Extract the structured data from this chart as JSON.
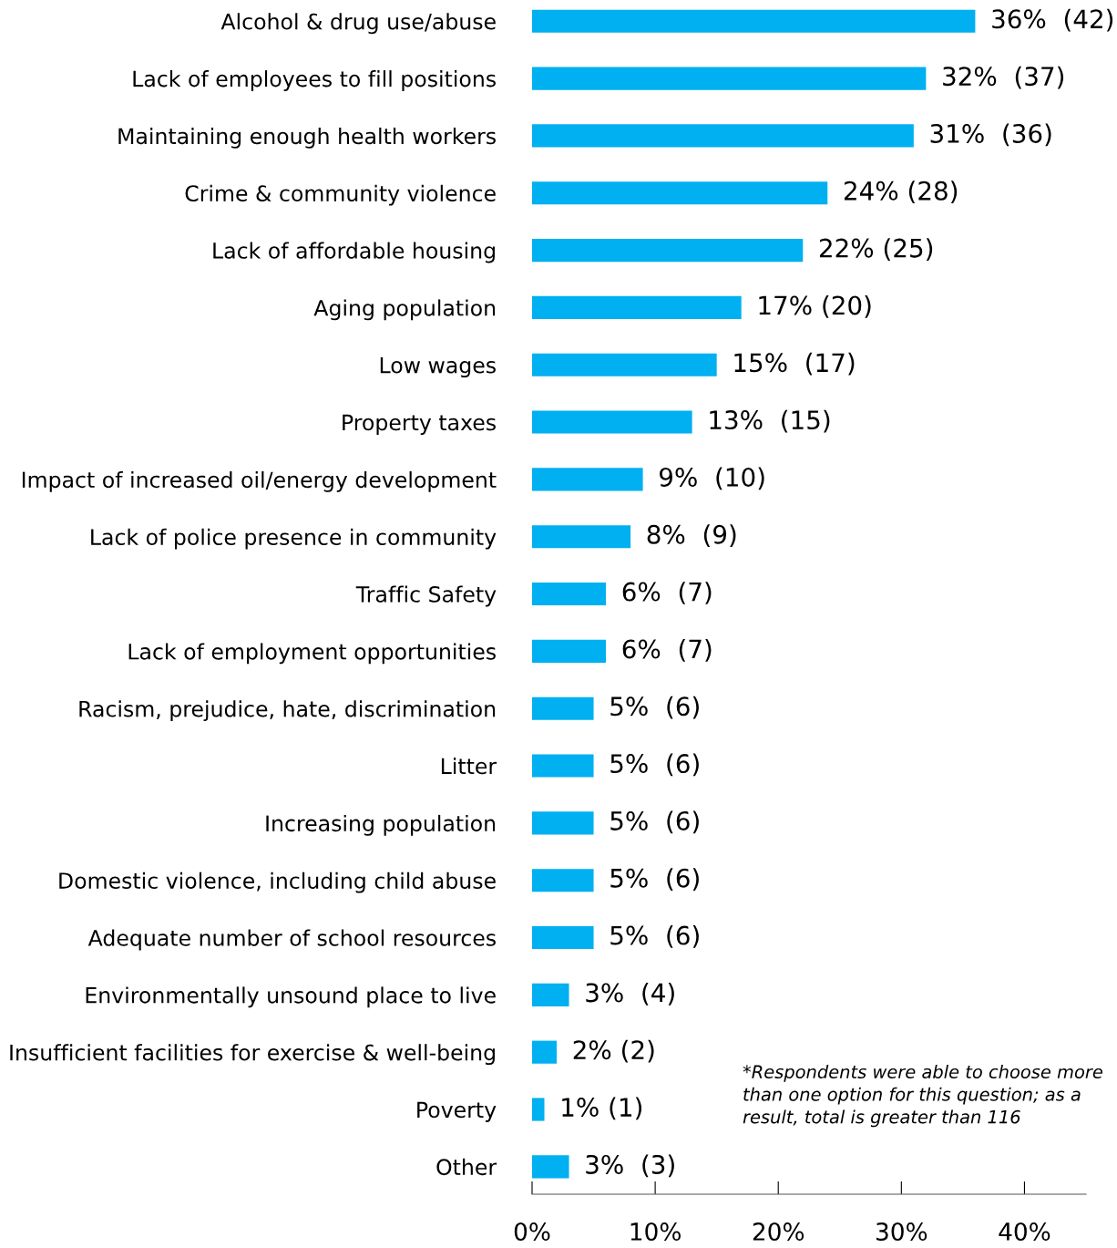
{
  "chart_data": {
    "type": "bar",
    "orientation": "horizontal",
    "categories": [
      "Alcohol & drug use/abuse",
      "Lack of employees to fill positions",
      "Maintaining enough health workers",
      "Crime & community violence",
      "Lack of affordable housing",
      "Aging population",
      "Low wages",
      "Property taxes",
      "Impact of increased oil/energy development",
      "Lack of police presence in community",
      "Traffic Safety",
      "Lack of employment opportunities",
      "Racism, prejudice, hate, discrimination",
      "Litter",
      "Increasing population",
      "Domestic violence, including child abuse",
      "Adequate number of school resources",
      "Environmentally unsound place to live",
      "Insufficient facilities for exercise & well-being",
      "Poverty",
      "Other"
    ],
    "values": [
      36,
      32,
      31,
      24,
      22,
      17,
      15,
      13,
      9,
      8,
      6,
      6,
      5,
      5,
      5,
      5,
      5,
      3,
      2,
      1,
      3
    ],
    "value_labels": [
      "36%  (42)",
      "32%  (37)",
      "31%  (36)",
      "24% (28)",
      "22% (25)",
      "17% (20)",
      "15%  (17)",
      "13%  (15)",
      "9%  (10)",
      "8%  (9)",
      "6%  (7)",
      "6%  (7)",
      "5%  (6)",
      "5%  (6)",
      "5%  (6)",
      "5%  (6)",
      "5%  (6)",
      "3%  (4)",
      "2% (2)",
      "1% (1)",
      "3%  (3)"
    ],
    "color": "#00b0f0",
    "xlim": [
      0,
      45
    ],
    "xticks": [
      {
        "value": 0,
        "label": "0%"
      },
      {
        "value": 10,
        "label": "10%"
      },
      {
        "value": 20,
        "label": "20%"
      },
      {
        "value": 30,
        "label": "30%"
      },
      {
        "value": 40,
        "label": "40%"
      }
    ],
    "grid": false,
    "annotations": [
      "*Respondents were able to choose more than one option for this question; as a result, total is greater than 116"
    ]
  }
}
